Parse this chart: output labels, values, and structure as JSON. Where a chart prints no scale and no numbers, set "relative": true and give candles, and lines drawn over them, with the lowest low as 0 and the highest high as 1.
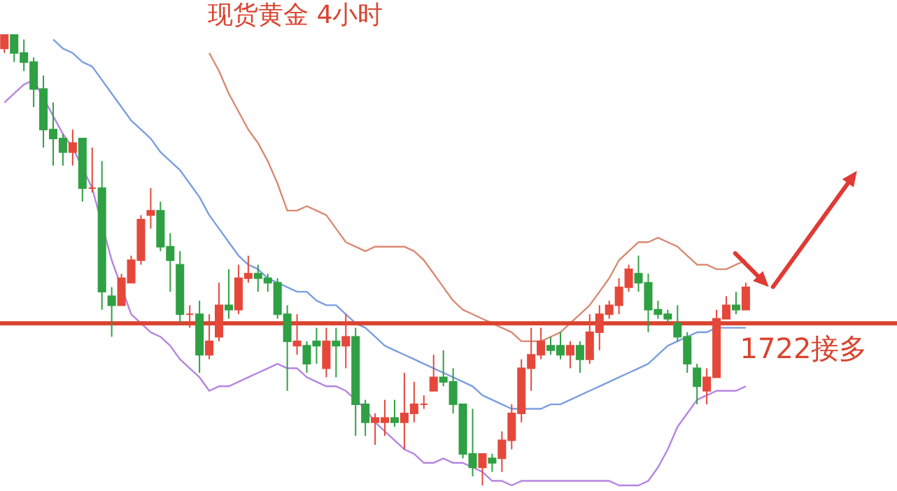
{
  "chart_data": {
    "type": "candlestick",
    "title": "现货黄金 4小时",
    "relative": true,
    "categories": [
      null,
      null,
      null,
      null,
      null,
      null,
      null,
      null,
      null,
      null,
      null,
      null,
      null,
      null,
      null,
      null,
      null,
      null,
      null,
      null,
      null,
      null,
      null,
      null,
      null,
      null,
      null,
      null,
      null,
      null,
      null,
      null,
      null,
      null,
      null,
      null,
      null,
      null,
      null,
      null,
      null,
      null,
      null,
      null,
      null,
      null,
      null,
      null,
      null,
      null,
      null,
      null,
      null,
      null,
      null,
      null,
      null,
      null,
      null,
      null,
      null,
      null,
      null,
      null,
      null,
      null,
      null,
      null,
      null,
      null,
      null,
      null,
      null,
      null,
      null,
      null,
      null
    ],
    "ohlc": [
      [
        0.97,
        1.0,
        0.96,
        1.0
      ],
      [
        1.0,
        1.0,
        0.94,
        0.96
      ],
      [
        0.96,
        0.99,
        0.92,
        0.94
      ],
      [
        0.94,
        0.95,
        0.84,
        0.88
      ],
      [
        0.88,
        0.91,
        0.75,
        0.79
      ],
      [
        0.79,
        0.85,
        0.71,
        0.77
      ],
      [
        0.77,
        0.78,
        0.71,
        0.74
      ],
      [
        0.74,
        0.79,
        0.71,
        0.76
      ],
      [
        0.77,
        0.77,
        0.63,
        0.66
      ],
      [
        0.66,
        0.75,
        0.65,
        0.66
      ],
      [
        0.66,
        0.72,
        0.39,
        0.43
      ],
      [
        0.42,
        0.44,
        0.33,
        0.4
      ],
      [
        0.4,
        0.47,
        0.4,
        0.46
      ],
      [
        0.45,
        0.51,
        0.45,
        0.5
      ],
      [
        0.5,
        0.6,
        0.49,
        0.59
      ],
      [
        0.6,
        0.66,
        0.57,
        0.61
      ],
      [
        0.61,
        0.63,
        0.52,
        0.53
      ],
      [
        0.53,
        0.56,
        0.43,
        0.5
      ],
      [
        0.49,
        0.52,
        0.36,
        0.38
      ],
      [
        0.38,
        0.4,
        0.35,
        0.38
      ],
      [
        0.38,
        0.41,
        0.25,
        0.29
      ],
      [
        0.29,
        0.38,
        0.28,
        0.32
      ],
      [
        0.33,
        0.45,
        0.32,
        0.4
      ],
      [
        0.4,
        0.48,
        0.37,
        0.39
      ],
      [
        0.39,
        0.49,
        0.38,
        0.46
      ],
      [
        0.46,
        0.51,
        0.45,
        0.47
      ],
      [
        0.47,
        0.49,
        0.43,
        0.46
      ],
      [
        0.46,
        0.47,
        0.43,
        0.45
      ],
      [
        0.45,
        0.46,
        0.37,
        0.38
      ],
      [
        0.38,
        0.4,
        0.21,
        0.32
      ],
      [
        0.31,
        0.38,
        0.29,
        0.32
      ],
      [
        0.31,
        0.32,
        0.25,
        0.27
      ],
      [
        0.32,
        0.35,
        0.27,
        0.31
      ],
      [
        0.26,
        0.35,
        0.24,
        0.32
      ],
      [
        0.32,
        0.35,
        0.24,
        0.31
      ],
      [
        0.31,
        0.38,
        0.26,
        0.33
      ],
      [
        0.33,
        0.35,
        0.11,
        0.18
      ],
      [
        0.18,
        0.19,
        0.11,
        0.14
      ],
      [
        0.14,
        0.16,
        0.09,
        0.15
      ],
      [
        0.14,
        0.19,
        0.11,
        0.15
      ],
      [
        0.15,
        0.19,
        0.13,
        0.14
      ],
      [
        0.14,
        0.25,
        0.08,
        0.16
      ],
      [
        0.16,
        0.23,
        0.14,
        0.18
      ],
      [
        0.18,
        0.2,
        0.17,
        0.18
      ],
      [
        0.21,
        0.29,
        0.21,
        0.24
      ],
      [
        0.24,
        0.3,
        0.22,
        0.23
      ],
      [
        0.23,
        0.26,
        0.16,
        0.18
      ],
      [
        0.18,
        0.18,
        0.06,
        0.07
      ],
      [
        0.07,
        0.17,
        0.02,
        0.04
      ],
      [
        0.04,
        0.07,
        0.0,
        0.07
      ],
      [
        0.06,
        0.07,
        0.03,
        0.05
      ],
      [
        0.06,
        0.12,
        0.03,
        0.1
      ],
      [
        0.1,
        0.18,
        0.08,
        0.16
      ],
      [
        0.16,
        0.28,
        0.14,
        0.26
      ],
      [
        0.26,
        0.35,
        0.21,
        0.29
      ],
      [
        0.29,
        0.35,
        0.28,
        0.32
      ],
      [
        0.31,
        0.33,
        0.29,
        0.3
      ],
      [
        0.31,
        0.34,
        0.28,
        0.29
      ],
      [
        0.29,
        0.32,
        0.26,
        0.31
      ],
      [
        0.31,
        0.32,
        0.25,
        0.28
      ],
      [
        0.28,
        0.38,
        0.27,
        0.34
      ],
      [
        0.34,
        0.4,
        0.3,
        0.38
      ],
      [
        0.38,
        0.41,
        0.37,
        0.4
      ],
      [
        0.4,
        0.46,
        0.38,
        0.44
      ],
      [
        0.44,
        0.49,
        0.43,
        0.48
      ],
      [
        0.47,
        0.51,
        0.43,
        0.45
      ],
      [
        0.45,
        0.47,
        0.34,
        0.39
      ],
      [
        0.39,
        0.41,
        0.37,
        0.38
      ],
      [
        0.38,
        0.39,
        0.36,
        0.37
      ],
      [
        0.36,
        0.4,
        0.32,
        0.33
      ],
      [
        0.33,
        0.34,
        0.25,
        0.27
      ],
      [
        0.26,
        0.27,
        0.18,
        0.22
      ],
      [
        0.21,
        0.26,
        0.18,
        0.24
      ],
      [
        0.24,
        0.39,
        0.24,
        0.37
      ],
      [
        0.37,
        0.42,
        0.37,
        0.4
      ],
      [
        0.4,
        0.43,
        0.38,
        0.39
      ],
      [
        0.39,
        0.45,
        0.39,
        0.44
      ]
    ],
    "colors": [
      "#e5483b",
      "#2fa043",
      "#2fa043",
      "#2fa043",
      "#2fa043",
      "#2fa043",
      "#2fa043",
      "#e5483b",
      "#2fa043",
      "#e5483b",
      "#2fa043",
      "#2fa043",
      "#e5483b",
      "#e5483b",
      "#e5483b",
      "#e5483b",
      "#2fa043",
      "#2fa043",
      "#2fa043",
      "#e5483b",
      "#2fa043",
      "#e5483b",
      "#e5483b",
      "#2fa043",
      "#e5483b",
      "#e5483b",
      "#2fa043",
      "#2fa043",
      "#2fa043",
      "#2fa043",
      "#e5483b",
      "#2fa043",
      "#2fa043",
      "#e5483b",
      "#2fa043",
      "#e5483b",
      "#2fa043",
      "#2fa043",
      "#e5483b",
      "#e5483b",
      "#2fa043",
      "#e5483b",
      "#e5483b",
      "#e5483b",
      "#e5483b",
      "#2fa043",
      "#2fa043",
      "#2fa043",
      "#2fa043",
      "#e5483b",
      "#2fa043",
      "#e5483b",
      "#e5483b",
      "#e5483b",
      "#e5483b",
      "#e5483b",
      "#2fa043",
      "#2fa043",
      "#e5483b",
      "#2fa043",
      "#e5483b",
      "#e5483b",
      "#e5483b",
      "#e5483b",
      "#e5483b",
      "#2fa043",
      "#2fa043",
      "#2fa043",
      "#2fa043",
      "#2fa043",
      "#2fa043",
      "#2fa043",
      "#e5483b",
      "#e5483b",
      "#e5483b",
      "#2fa043",
      "#e5483b"
    ],
    "series": [
      {
        "type": "line",
        "color": "#d98a73",
        "values": [
          null,
          null,
          null,
          null,
          null,
          null,
          null,
          null,
          null,
          null,
          null,
          null,
          null,
          null,
          null,
          null,
          null,
          null,
          null,
          null,
          null,
          0.96,
          0.92,
          0.87,
          0.83,
          0.79,
          0.76,
          0.72,
          0.67,
          0.61,
          0.61,
          0.62,
          0.61,
          0.6,
          0.57,
          0.54,
          0.53,
          0.52,
          0.53,
          0.53,
          0.53,
          0.53,
          0.52,
          0.5,
          0.47,
          0.44,
          0.41,
          0.39,
          0.38,
          0.37,
          0.36,
          0.35,
          0.34,
          0.32,
          0.32,
          0.32,
          0.33,
          0.34,
          0.36,
          0.38,
          0.4,
          0.43,
          0.46,
          0.5,
          0.52,
          0.54,
          0.54,
          0.55,
          0.54,
          0.53,
          0.51,
          0.49,
          0.49,
          0.48,
          0.48,
          0.49,
          0.5
        ]
      },
      {
        "type": "line",
        "color": "#7a9ee0",
        "values": [
          null,
          null,
          null,
          null,
          null,
          0.99,
          0.97,
          0.96,
          0.94,
          0.93,
          0.9,
          0.87,
          0.84,
          0.81,
          0.79,
          0.77,
          0.74,
          0.72,
          0.7,
          0.67,
          0.64,
          0.6,
          0.57,
          0.54,
          0.51,
          0.49,
          0.48,
          0.46,
          0.45,
          0.44,
          0.43,
          0.43,
          0.41,
          0.4,
          0.4,
          0.38,
          0.36,
          0.35,
          0.33,
          0.31,
          0.3,
          0.29,
          0.28,
          0.27,
          0.26,
          0.25,
          0.24,
          0.23,
          0.22,
          0.2,
          0.19,
          0.18,
          0.17,
          0.17,
          0.17,
          0.17,
          0.18,
          0.18,
          0.19,
          0.2,
          0.21,
          0.22,
          0.23,
          0.24,
          0.25,
          0.26,
          0.27,
          0.29,
          0.31,
          0.32,
          0.33,
          0.34,
          0.34,
          0.35,
          0.35,
          0.35,
          0.35
        ]
      },
      {
        "type": "line",
        "color": "#b585e0",
        "values": [
          0.85,
          0.87,
          0.89,
          0.9,
          null,
          0.82,
          0.78,
          0.75,
          null,
          0.66,
          null,
          0.5,
          null,
          0.38,
          0.36,
          0.34,
          0.33,
          0.31,
          0.28,
          0.26,
          0.24,
          0.21,
          0.22,
          0.22,
          0.23,
          0.24,
          0.25,
          0.26,
          0.27,
          0.26,
          0.26,
          0.24,
          0.23,
          0.22,
          0.22,
          0.21,
          0.19,
          0.17,
          0.14,
          0.12,
          0.1,
          0.08,
          0.07,
          0.05,
          0.05,
          0.06,
          0.05,
          0.05,
          0.04,
          0.03,
          0.01,
          0.01,
          0.0,
          0.01,
          0.01,
          0.01,
          0.01,
          0.01,
          0.01,
          0.01,
          0.01,
          0.01,
          0.01,
          0.0,
          0.0,
          0.0,
          0.01,
          0.04,
          0.08,
          0.13,
          0.16,
          0.19,
          0.2,
          0.21,
          0.21,
          0.21,
          0.22
        ]
      }
    ],
    "ref_lines": [
      {
        "axis": "y",
        "value": 0.36,
        "label": "1722接多",
        "color": "#d9432f"
      }
    ]
  }
}
